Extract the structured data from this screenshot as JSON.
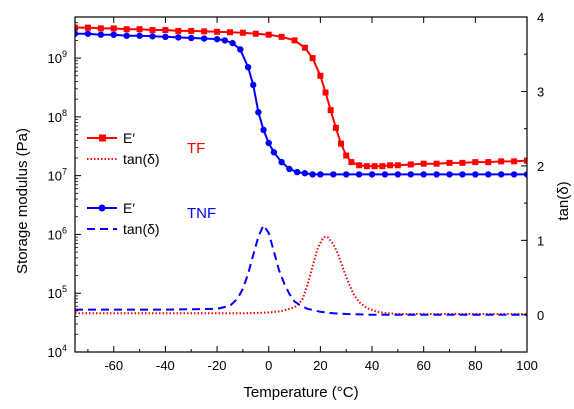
{
  "chart_data": {
    "type": "line",
    "xlabel": "Temperature (°C)",
    "ylabel_left": "Storage modulus (Pa)",
    "ylabel_right": "tan(δ)",
    "xlim": [
      -75,
      100
    ],
    "ylim_left": [
      10000,
      5000000000
    ],
    "ylim_left_scale": "log",
    "ylim_right": [
      -0.5,
      4
    ],
    "x_ticks": [
      -60,
      -40,
      -20,
      0,
      20,
      40,
      60,
      80,
      100
    ],
    "x_tick_labels": [
      "-60",
      "-40",
      "-20",
      "0",
      "20",
      "40",
      "60",
      "80",
      "100"
    ],
    "y_left_ticks": [
      10000,
      100000,
      1000000,
      10000000,
      100000000,
      1000000000
    ],
    "y_left_tick_labels": [
      {
        "base": "10",
        "exp": "4"
      },
      {
        "base": "10",
        "exp": "5"
      },
      {
        "base": "10",
        "exp": "6"
      },
      {
        "base": "10",
        "exp": "7"
      },
      {
        "base": "10",
        "exp": "8"
      },
      {
        "base": "10",
        "exp": "9"
      }
    ],
    "y_right_ticks": [
      0,
      1,
      2,
      3,
      4
    ],
    "y_right_tick_labels": [
      "0",
      "1",
      "2",
      "3",
      "4"
    ],
    "grid": false,
    "legend_position": "left",
    "groups": [
      {
        "label": "TF",
        "color": "#ff0000"
      },
      {
        "label": "TNF",
        "color": "#0000ff"
      }
    ],
    "series": [
      {
        "name": "E′",
        "group": "TF",
        "axis": "left",
        "color": "#ff0000",
        "style": "solid",
        "marker": "square",
        "x": [
          -75,
          -70,
          -65,
          -60,
          -55,
          -50,
          -45,
          -40,
          -35,
          -30,
          -25,
          -20,
          -15,
          -10,
          -5,
          0,
          5,
          10,
          14,
          17,
          20,
          22,
          24,
          26,
          28,
          30,
          32,
          35,
          38,
          41,
          44,
          47,
          50,
          55,
          60,
          65,
          70,
          75,
          80,
          85,
          90,
          95,
          100
        ],
        "y": [
          3300000000.0,
          3300000000.0,
          3200000000.0,
          3200000000.0,
          3100000000.0,
          3100000000.0,
          3000000000.0,
          3000000000.0,
          2900000000.0,
          2900000000.0,
          2850000000.0,
          2800000000.0,
          2750000000.0,
          2700000000.0,
          2600000000.0,
          2500000000.0,
          2300000000.0,
          2000000000.0,
          1500000000.0,
          1000000000.0,
          500000000.0,
          260000000.0,
          130000000.0,
          65000000.0,
          35000000.0,
          22000000.0,
          17000000.0,
          15000000.0,
          14500000.0,
          14500000.0,
          14500000.0,
          15000000.0,
          15000000.0,
          15500000.0,
          16000000.0,
          16000000.0,
          16500000.0,
          16500000.0,
          17000000.0,
          17000000.0,
          17500000.0,
          17500000.0,
          18000000.0
        ]
      },
      {
        "name": "tan(δ)",
        "group": "TF",
        "axis": "right",
        "color": "#ff0000",
        "style": "dotted",
        "x": [
          -75,
          -60,
          -40,
          -20,
          -10,
          0,
          5,
          10,
          13,
          15,
          17,
          19,
          21,
          22,
          23,
          25,
          27,
          29,
          31,
          33,
          35,
          38,
          42,
          46,
          50,
          60,
          70,
          80,
          90,
          100
        ],
        "y": [
          0.02,
          0.02,
          0.02,
          0.02,
          0.02,
          0.03,
          0.05,
          0.1,
          0.2,
          0.4,
          0.65,
          0.9,
          1.03,
          1.05,
          1.04,
          0.95,
          0.8,
          0.6,
          0.42,
          0.27,
          0.17,
          0.09,
          0.04,
          0.02,
          0.01,
          0.01,
          0.01,
          0.01,
          0.01,
          0.01
        ]
      },
      {
        "name": "E′",
        "group": "TNF",
        "axis": "left",
        "color": "#0000ff",
        "style": "solid",
        "marker": "circle",
        "x": [
          -75,
          -70,
          -65,
          -60,
          -55,
          -50,
          -45,
          -40,
          -35,
          -30,
          -25,
          -20,
          -17,
          -14,
          -11,
          -8,
          -6,
          -4,
          -2,
          0,
          2,
          5,
          8,
          11,
          14,
          17,
          20,
          25,
          30,
          35,
          40,
          45,
          50,
          55,
          60,
          65,
          70,
          75,
          80,
          85,
          90,
          95,
          100
        ],
        "y": [
          2600000000.0,
          2600000000.0,
          2500000000.0,
          2500000000.0,
          2400000000.0,
          2400000000.0,
          2350000000.0,
          2300000000.0,
          2250000000.0,
          2200000000.0,
          2150000000.0,
          2100000000.0,
          2000000000.0,
          1800000000.0,
          1400000000.0,
          700000000.0,
          350000000.0,
          120000000.0,
          60000000.0,
          36000000.0,
          25000000.0,
          17000000.0,
          13000000.0,
          11500000.0,
          11000000.0,
          10500000.0,
          10500000.0,
          10500000.0,
          10500000.0,
          10500000.0,
          10500000.0,
          10500000.0,
          10500000.0,
          10500000.0,
          10500000.0,
          10500000.0,
          10500000.0,
          10500000.0,
          10500000.0,
          10500000.0,
          10500000.0,
          10500000.0,
          10500000.0
        ]
      },
      {
        "name": "tan(δ)",
        "group": "TNF",
        "axis": "right",
        "color": "#0000ff",
        "style": "dashed",
        "x": [
          -75,
          -60,
          -40,
          -20,
          -15,
          -12,
          -10,
          -8,
          -6,
          -4,
          -2,
          0,
          2,
          4,
          6,
          8,
          10,
          12,
          15,
          20,
          25,
          30,
          40,
          50,
          60,
          70,
          80,
          90,
          100
        ],
        "y": [
          0.07,
          0.07,
          0.07,
          0.08,
          0.12,
          0.22,
          0.35,
          0.55,
          0.8,
          1.05,
          1.2,
          1.1,
          0.85,
          0.6,
          0.42,
          0.28,
          0.18,
          0.13,
          0.08,
          0.04,
          0.02,
          0.01,
          0.0,
          0.0,
          0.0,
          0.0,
          0.0,
          0.0,
          0.0
        ]
      }
    ]
  }
}
